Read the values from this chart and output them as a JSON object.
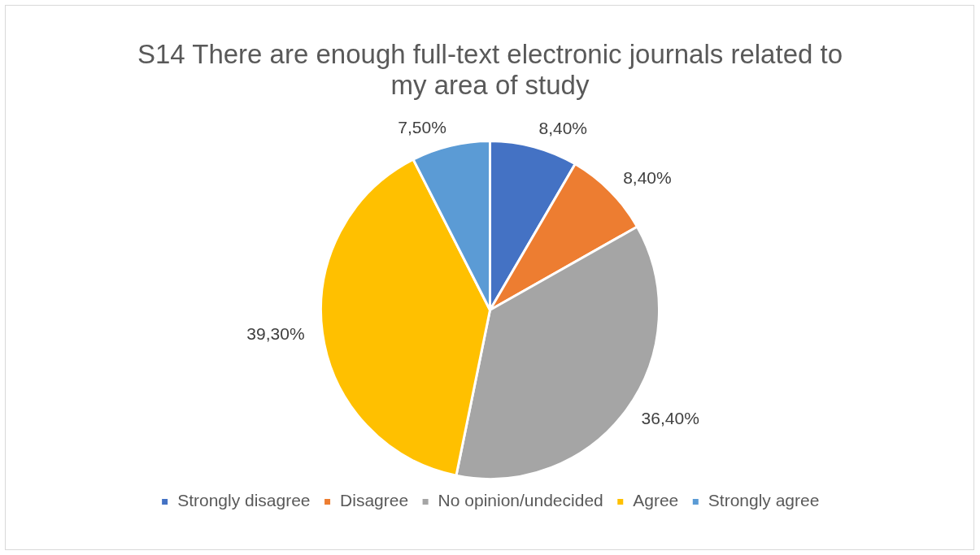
{
  "chart_data": {
    "type": "pie",
    "title": "S14 There are enough full-text electronic journals related to my area of study",
    "categories": [
      "Strongly disagree",
      "Disagree",
      "No opinion/undecided",
      "Agree",
      "Strongly agree"
    ],
    "values": [
      8.4,
      8.4,
      36.4,
      39.3,
      7.5
    ],
    "colors": [
      "#4472c4",
      "#ed7d31",
      "#a5a5a5",
      "#ffc000",
      "#5b9bd5"
    ],
    "value_labels": [
      "8,40%",
      "8,40%",
      "36,40%",
      "39,30%",
      "7,50%"
    ],
    "legend": "bottom"
  }
}
